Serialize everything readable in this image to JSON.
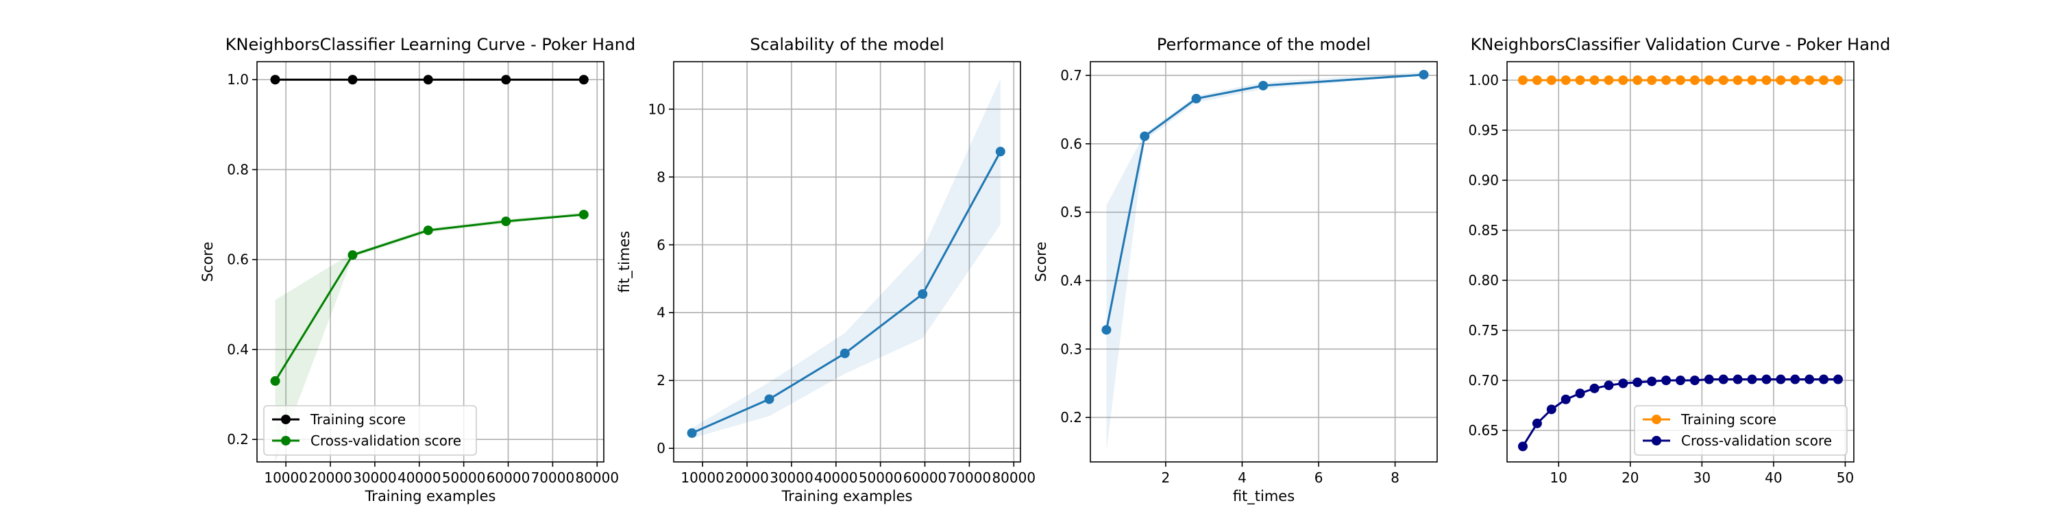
{
  "chart_data": [
    {
      "id": "learning",
      "type": "line",
      "title": "KNeighborsClassifier Learning Curve - Poker Hand",
      "xlabel": "Training examples",
      "ylabel": "Score",
      "xlim": [
        3500,
        81500
      ],
      "ylim": [
        0.15,
        1.04
      ],
      "xticks": [
        10000,
        20000,
        30000,
        40000,
        50000,
        60000,
        70000,
        80000
      ],
      "xtick_labels": [
        "10000",
        "20000",
        "30000",
        "40000",
        "50000",
        "60000",
        "70000",
        "80000"
      ],
      "yticks": [
        0.2,
        0.4,
        0.6,
        0.8,
        1.0
      ],
      "ytick_labels": [
        "0.2",
        "0.4",
        "0.6",
        "0.8",
        "1.0"
      ],
      "grid": true,
      "legend": "lower-left",
      "series": [
        {
          "name": "Training score",
          "color": "#000000",
          "x": [
            7600,
            25000,
            42000,
            59500,
            77000
          ],
          "values": [
            1.0,
            1.0,
            1.0,
            1.0,
            1.0
          ],
          "band_lower": [
            1.0,
            1.0,
            1.0,
            1.0,
            1.0
          ],
          "band_upper": [
            1.0,
            1.0,
            1.0,
            1.0,
            1.0
          ],
          "band_color": "#000000"
        },
        {
          "name": "Cross-validation score",
          "color": "#008000",
          "x": [
            7600,
            25000,
            42000,
            59500,
            77000
          ],
          "values": [
            0.33,
            0.61,
            0.665,
            0.685,
            0.7
          ],
          "band_lower": [
            0.15,
            0.605,
            0.66,
            0.68,
            0.7
          ],
          "band_upper": [
            0.51,
            0.615,
            0.67,
            0.69,
            0.705
          ],
          "band_color": "#008000"
        }
      ]
    },
    {
      "id": "scalability",
      "type": "line",
      "title": "Scalability of the model",
      "xlabel": "Training examples",
      "ylabel": "fit_times",
      "xlim": [
        3500,
        81500
      ],
      "ylim": [
        -0.4,
        11.4
      ],
      "xticks": [
        10000,
        20000,
        30000,
        40000,
        50000,
        60000,
        70000,
        80000
      ],
      "xtick_labels": [
        "10000",
        "20000",
        "30000",
        "40000",
        "50000",
        "60000",
        "70000",
        "80000"
      ],
      "yticks": [
        0,
        2,
        4,
        6,
        8,
        10
      ],
      "ytick_labels": [
        "0",
        "2",
        "4",
        "6",
        "8",
        "10"
      ],
      "grid": true,
      "series": [
        {
          "color": "#1f77b4",
          "x": [
            7600,
            25000,
            42000,
            59500,
            77000
          ],
          "values": [
            0.45,
            1.45,
            2.8,
            4.55,
            8.75
          ],
          "band_lower": [
            0.3,
            0.95,
            2.2,
            3.25,
            6.6
          ],
          "band_upper": [
            0.6,
            1.95,
            3.4,
            5.85,
            10.9
          ],
          "band_color": "#1f77b4"
        }
      ]
    },
    {
      "id": "performance",
      "type": "line",
      "title": "Performance of the model",
      "xlabel": "fit_times",
      "ylabel": "Score",
      "xlim": [
        0.03,
        9.1
      ],
      "ylim": [
        0.135,
        0.72
      ],
      "xticks": [
        2,
        4,
        6,
        8
      ],
      "xtick_labels": [
        "2",
        "4",
        "6",
        "8"
      ],
      "yticks": [
        0.2,
        0.3,
        0.4,
        0.5,
        0.6,
        0.7
      ],
      "ytick_labels": [
        "0.2",
        "0.3",
        "0.4",
        "0.5",
        "0.6",
        "0.7"
      ],
      "grid": true,
      "series": [
        {
          "color": "#1f77b4",
          "x": [
            0.45,
            1.45,
            2.8,
            4.55,
            8.75
          ],
          "values": [
            0.328,
            0.611,
            0.666,
            0.685,
            0.701
          ],
          "band_lower": [
            0.15,
            0.605,
            0.66,
            0.68,
            0.7
          ],
          "band_upper": [
            0.51,
            0.615,
            0.67,
            0.69,
            0.705
          ],
          "band_color": "#1f77b4"
        }
      ]
    },
    {
      "id": "validation",
      "type": "line",
      "title": "KNeighborsClassifier Validation Curve - Poker Hand",
      "xlabel": "",
      "ylabel": "",
      "xlim": [
        2.8,
        51.2
      ],
      "ylim": [
        0.6185,
        1.0185
      ],
      "xticks": [
        10,
        20,
        30,
        40,
        50
      ],
      "xtick_labels": [
        "10",
        "20",
        "30",
        "40",
        "50"
      ],
      "yticks": [
        0.65,
        0.7,
        0.75,
        0.8,
        0.85,
        0.9,
        0.95,
        1.0
      ],
      "ytick_labels": [
        "0.65",
        "0.70",
        "0.75",
        "0.80",
        "0.85",
        "0.90",
        "0.95",
        "1.00"
      ],
      "grid": true,
      "legend": "lower-right",
      "series": [
        {
          "name": "Training score",
          "color": "#ff8c00",
          "x": [
            5,
            7,
            9,
            11,
            13,
            15,
            17,
            19,
            21,
            23,
            25,
            27,
            29,
            31,
            33,
            35,
            37,
            39,
            41,
            43,
            45,
            47,
            49
          ],
          "values": [
            1.0,
            1.0,
            1.0,
            1.0,
            1.0,
            1.0,
            1.0,
            1.0,
            1.0,
            1.0,
            1.0,
            1.0,
            1.0,
            1.0,
            1.0,
            1.0,
            1.0,
            1.0,
            1.0,
            1.0,
            1.0,
            1.0,
            1.0
          ]
        },
        {
          "name": "Cross-validation score",
          "color": "#000080",
          "x": [
            5,
            7,
            9,
            11,
            13,
            15,
            17,
            19,
            21,
            23,
            25,
            27,
            29,
            31,
            33,
            35,
            37,
            39,
            41,
            43,
            45,
            47,
            49
          ],
          "values": [
            0.634,
            0.657,
            0.671,
            0.681,
            0.687,
            0.692,
            0.695,
            0.697,
            0.698,
            0.699,
            0.7,
            0.7,
            0.7,
            0.701,
            0.701,
            0.701,
            0.701,
            0.701,
            0.701,
            0.701,
            0.701,
            0.701,
            0.701
          ]
        }
      ]
    }
  ]
}
